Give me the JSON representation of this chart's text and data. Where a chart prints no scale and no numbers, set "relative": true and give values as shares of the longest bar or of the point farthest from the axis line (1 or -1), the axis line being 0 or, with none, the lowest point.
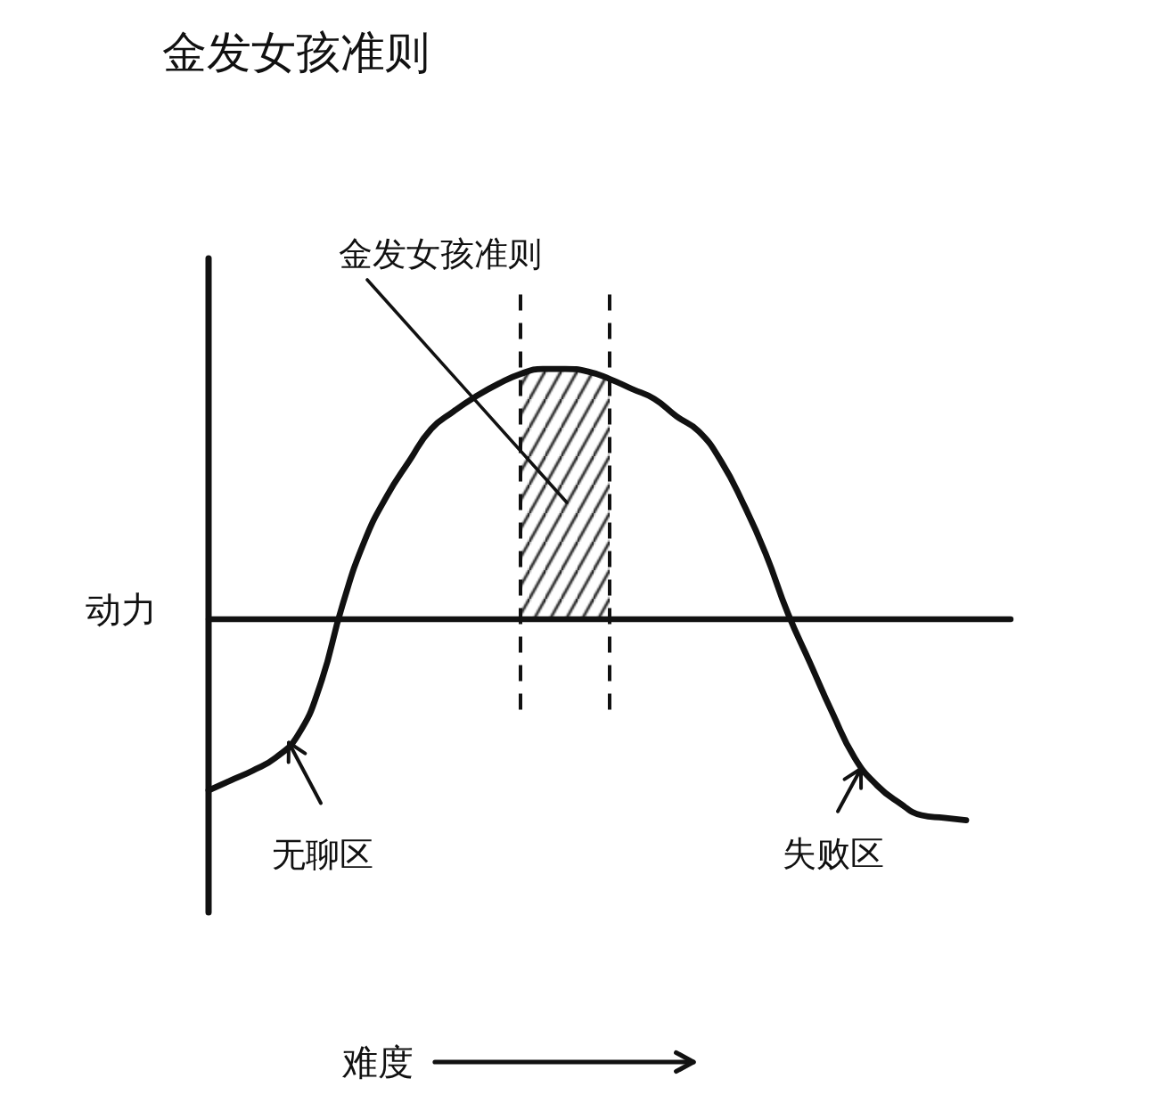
{
  "chart_data": {
    "type": "line",
    "title": "金发女孩准则",
    "ylabel": "动力",
    "relative": true,
    "categories": [
      null,
      null,
      null,
      null,
      null,
      null,
      null,
      null,
      null,
      null,
      null,
      null,
      null,
      null,
      null,
      null,
      null,
      null,
      null,
      null,
      null,
      null,
      null,
      null,
      null,
      null,
      null,
      null,
      null,
      null,
      null,
      null,
      null,
      null,
      null,
      null,
      null
    ],
    "series": [
      {
        "color": "#111111",
        "values": [
          -0.69,
          -0.65,
          -0.61,
          -0.56,
          -0.47,
          -0.27,
          0.05,
          0.31,
          0.49,
          0.63,
          0.76,
          0.83,
          0.89,
          0.94,
          0.98,
          1,
          1,
          0.99,
          0.96,
          0.92,
          0.88,
          0.81,
          0.75,
          0.63,
          0.46,
          0.26,
          0.02,
          -0.18,
          -0.38,
          -0.56,
          -0.67,
          -0.74,
          -0.79,
          -0.8,
          -0.81,
          null,
          null
        ]
      },
      {
        "type": "area",
        "name": "金发女孩准则",
        "color": "#111111",
        "values": [
          null,
          null,
          null,
          null,
          null,
          null,
          null,
          null,
          null,
          null,
          null,
          null,
          null,
          null,
          0.98,
          1,
          1,
          0.99,
          0.96,
          null,
          null,
          null,
          null,
          null,
          null,
          null,
          null,
          null,
          null,
          null,
          null,
          null,
          null,
          null,
          null,
          null,
          null
        ]
      }
    ],
    "annotations": [
      "无聊区",
      "失败区",
      "难度"
    ]
  }
}
